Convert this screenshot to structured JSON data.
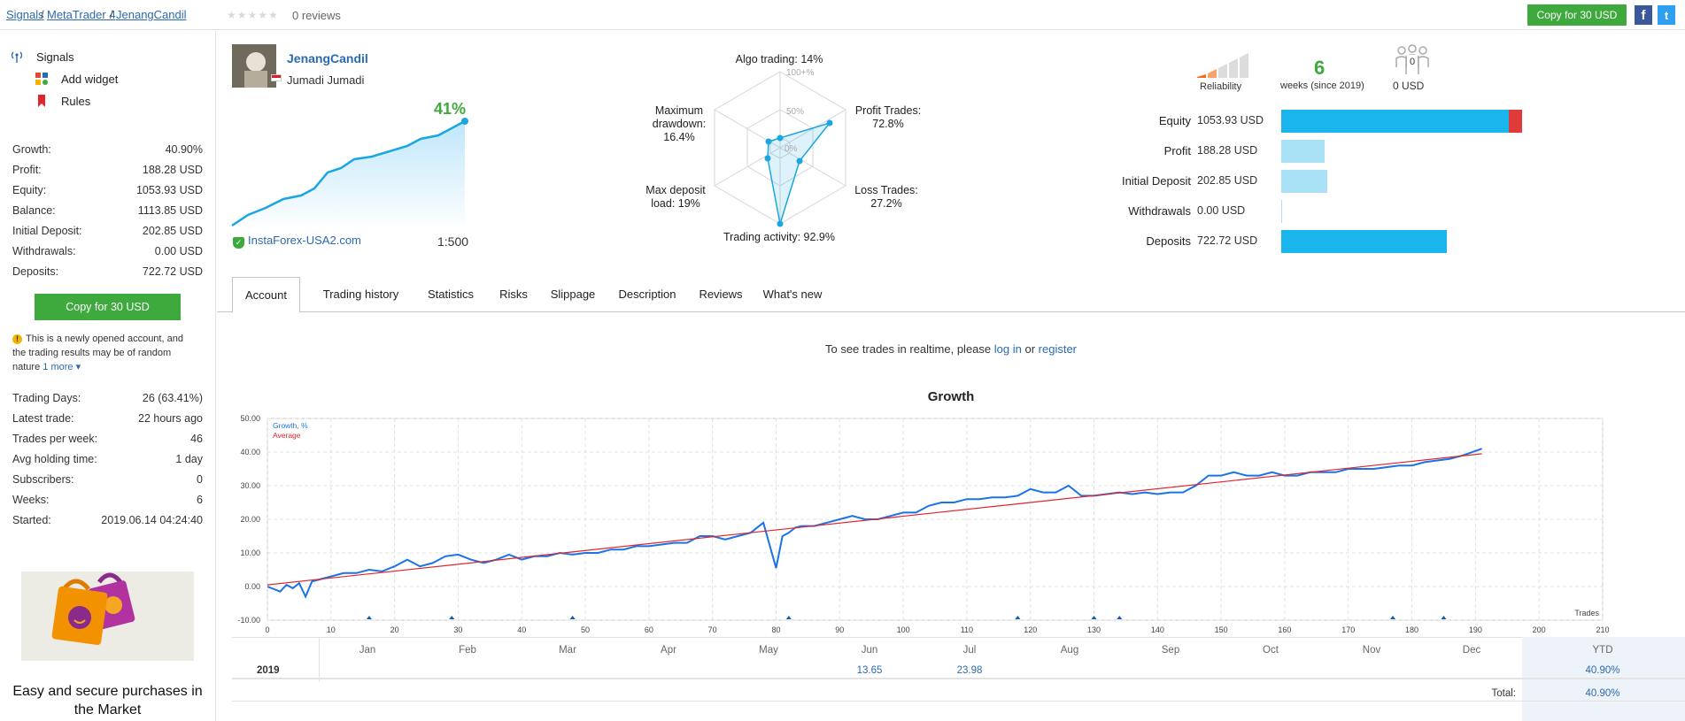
{
  "breadcrumb": [
    "Signals",
    "MetaTrader 4",
    "JenangCandil"
  ],
  "reviews": {
    "stars": "★★★★★",
    "count_label": "0 reviews"
  },
  "top_copy_button": "Copy for 30 USD",
  "social": {
    "facebook": "f",
    "twitter": "t"
  },
  "sidebar": {
    "links": [
      {
        "label": "Signals",
        "icon": "antenna-icon"
      },
      {
        "label": "Add widget",
        "icon": "widget-icon"
      },
      {
        "label": "Rules",
        "icon": "bookmark-icon"
      }
    ],
    "stats": [
      {
        "k": "Growth:",
        "v": "40.90%"
      },
      {
        "k": "Profit:",
        "v": "188.28 USD"
      },
      {
        "k": "Equity:",
        "v": "1053.93 USD"
      },
      {
        "k": "Balance:",
        "v": "1113.85 USD"
      },
      {
        "k": "Initial Deposit:",
        "v": "202.85 USD"
      },
      {
        "k": "Withdrawals:",
        "v": "0.00 USD"
      },
      {
        "k": "Deposits:",
        "v": "722.72 USD"
      }
    ],
    "copy_button": "Copy for 30 USD",
    "notice": "This is a newly opened account, and the trading results may be of random nature",
    "notice_more": "1 more",
    "stats2": [
      {
        "k": "Trading Days:",
        "v": "26 (63.41%)"
      },
      {
        "k": "Latest trade:",
        "v": "22 hours ago"
      },
      {
        "k": "Trades per week:",
        "v": "46"
      },
      {
        "k": "Avg holding time:",
        "v": "1 day"
      },
      {
        "k": "Subscribers:",
        "v": "0"
      },
      {
        "k": "Weeks:",
        "v": "6"
      },
      {
        "k": "Started:",
        "v": "2019.06.14 04:24:40"
      }
    ],
    "promo": "Easy and secure purchases in the Market"
  },
  "header": {
    "name": "JenangCandil",
    "sub": "Jumadi Jumadi",
    "growth": "41%",
    "broker": "InstaForex-USA2.com",
    "leverage": "1:500"
  },
  "radar": {
    "algo": "Algo trading: 14%",
    "profit": [
      "Profit Trades:",
      "72.8%"
    ],
    "loss": [
      "Loss Trades:",
      "27.2%"
    ],
    "activity": "Trading activity: 92.9%",
    "deposit_load": [
      "Max deposit",
      "load: 19%"
    ],
    "drawdown": [
      "Maximum",
      "drawdown:",
      "16.4%"
    ],
    "ticks": [
      "100+%",
      "50%",
      "0%"
    ]
  },
  "metrics": {
    "reliability": "Reliability",
    "weeks": "6",
    "weeks_label": "weeks (since 2019)",
    "subs_count": "0",
    "subs_label": "0 USD"
  },
  "bars": [
    {
      "label": "Equity",
      "value": "1053.93 USD"
    },
    {
      "label": "Profit",
      "value": "188.28 USD"
    },
    {
      "label": "Initial Deposit",
      "value": "202.85 USD"
    },
    {
      "label": "Withdrawals",
      "value": "0.00 USD"
    },
    {
      "label": "Deposits",
      "value": "722.72 USD"
    }
  ],
  "colors": {
    "green": "#3eaa3e",
    "blue": "#1aa7e0",
    "light_blue": "#a9e2f7",
    "red": "#e03a3a",
    "link": "#2b6ab0"
  },
  "tabs": [
    "Account",
    "Trading history",
    "Statistics",
    "Risks",
    "Slippage",
    "Description",
    "Reviews",
    "What's new"
  ],
  "realtime": {
    "pre": "To see trades in realtime, please",
    "login": "log in",
    "or": "or",
    "register": "register"
  },
  "chart_data": {
    "type": "line",
    "title": "Growth",
    "xlabel": "Trades",
    "ylim": [
      -10,
      50
    ],
    "xlim": [
      0,
      210
    ],
    "yticks": [
      "50.00",
      "40.00",
      "30.00",
      "20.00",
      "10.00",
      "0.00",
      "-10.00"
    ],
    "xticks": [
      "0",
      "10",
      "20",
      "30",
      "40",
      "50",
      "60",
      "70",
      "80",
      "90",
      "100",
      "110",
      "120",
      "130",
      "140",
      "150",
      "160",
      "170",
      "180",
      "190",
      "200",
      "210"
    ],
    "series": [
      {
        "name": "Growth, %",
        "color": "#1a73e8",
        "x": [
          0,
          2,
          3,
          4,
          5,
          6,
          7,
          8,
          10,
          12,
          14,
          16,
          18,
          20,
          22,
          24,
          26,
          28,
          30,
          32,
          34,
          36,
          38,
          40,
          42,
          44,
          46,
          48,
          50,
          52,
          54,
          56,
          58,
          60,
          62,
          64,
          66,
          68,
          70,
          72,
          74,
          76,
          78,
          80,
          81,
          82,
          83,
          84,
          86,
          88,
          90,
          92,
          94,
          96,
          98,
          100,
          102,
          104,
          106,
          108,
          110,
          112,
          114,
          116,
          118,
          120,
          122,
          124,
          126,
          128,
          130,
          132,
          134,
          136,
          138,
          140,
          142,
          144,
          145,
          146,
          148,
          150,
          152,
          154,
          156,
          158,
          160,
          162,
          164,
          166,
          168,
          170,
          172,
          174,
          176,
          178,
          180,
          182,
          184,
          186,
          188,
          191
        ],
        "y": [
          0,
          -1.5,
          0.5,
          -0.5,
          1,
          -3,
          1.5,
          2,
          3,
          4,
          4,
          5,
          4.5,
          6,
          8,
          6,
          7,
          9,
          9.5,
          8,
          7,
          8,
          9.5,
          8,
          9,
          9,
          10,
          9.5,
          10,
          10,
          11,
          11,
          12,
          12,
          12.5,
          13,
          13,
          15,
          15,
          14,
          15,
          16,
          19,
          5.5,
          15,
          16,
          17.5,
          18,
          18,
          19,
          20,
          21,
          20,
          20,
          21,
          22,
          22,
          24,
          25,
          25,
          26,
          26,
          26.5,
          26.5,
          27,
          29,
          28,
          28,
          30,
          27,
          27,
          27.5,
          28,
          27.5,
          28,
          27.5,
          28,
          28,
          29,
          30,
          33,
          33,
          34,
          33,
          33,
          34,
          33,
          33,
          34,
          34,
          34,
          35,
          35,
          35,
          35.5,
          36,
          36,
          37,
          37.5,
          38,
          39,
          41
        ]
      },
      {
        "name": "Average",
        "color": "#e0262c",
        "x": [
          0,
          191
        ],
        "y": [
          0.5,
          39.5
        ]
      }
    ],
    "markers_x": [
      16,
      29,
      48,
      82,
      118,
      130,
      134,
      177,
      185
    ]
  },
  "monthly": {
    "months": [
      "Jan",
      "Feb",
      "Mar",
      "Apr",
      "May",
      "Jun",
      "Jul",
      "Aug",
      "Sep",
      "Oct",
      "Nov",
      "Dec"
    ],
    "ytd": "YTD",
    "year": "2019",
    "jun": "13.65",
    "jul": "23.98",
    "ytd_value": "40.90%",
    "total_label": "Total:",
    "total_value": "40.90%"
  }
}
